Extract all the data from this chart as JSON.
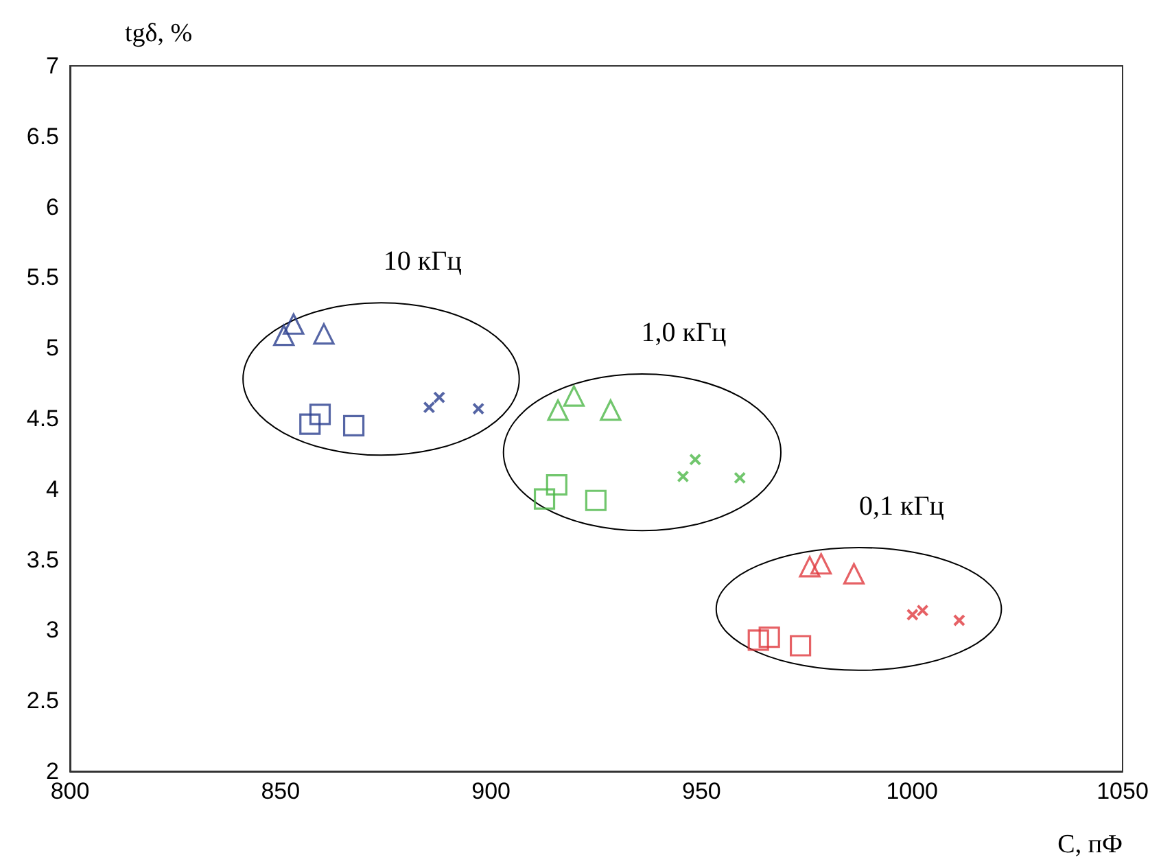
{
  "chart_data": {
    "type": "scatter",
    "xlabel": "C, пФ",
    "ylabel": "tgδ, %",
    "xlim": [
      800,
      1050
    ],
    "xticks": [
      800,
      850,
      900,
      950,
      1000,
      1050
    ],
    "ylim": [
      2,
      7
    ],
    "yticks": [
      2,
      2.5,
      3,
      3.5,
      4,
      4.5,
      5,
      5.5,
      6,
      6.5,
      7
    ],
    "grid": false,
    "series": [
      {
        "color": "#2b3f8f",
        "marker": "triangle",
        "x": [
          850.8,
          853.1,
          860.3
        ],
        "values": [
          5.09,
          5.17,
          5.1
        ]
      },
      {
        "color": "#2b3f8f",
        "marker": "square",
        "x": [
          857.0,
          859.4,
          867.4
        ],
        "values": [
          4.46,
          4.53,
          4.45
        ]
      },
      {
        "color": "#2b3f8f",
        "marker": "cross",
        "x": [
          885.3,
          887.7,
          897.0
        ],
        "values": [
          4.58,
          4.65,
          4.57
        ]
      },
      {
        "color": "#4db848",
        "marker": "triangle",
        "x": [
          915.9,
          919.7,
          928.4
        ],
        "values": [
          4.56,
          4.66,
          4.56
        ]
      },
      {
        "color": "#4db848",
        "marker": "square",
        "x": [
          912.7,
          915.6,
          924.9
        ],
        "values": [
          3.93,
          4.03,
          3.92
        ]
      },
      {
        "color": "#4db848",
        "marker": "cross",
        "x": [
          945.6,
          948.5,
          959.1
        ],
        "values": [
          4.09,
          4.21,
          4.08
        ]
      },
      {
        "color": "#e03a3e",
        "marker": "triangle",
        "x": [
          975.7,
          978.4,
          986.2
        ],
        "values": [
          3.45,
          3.47,
          3.4
        ]
      },
      {
        "color": "#e03a3e",
        "marker": "square",
        "x": [
          963.5,
          966.1,
          973.5
        ],
        "values": [
          2.93,
          2.95,
          2.89
        ]
      },
      {
        "color": "#e03a3e",
        "marker": "cross",
        "x": [
          1000.1,
          1002.5,
          1011.2
        ],
        "values": [
          3.11,
          3.14,
          3.07
        ]
      }
    ],
    "annotations": [
      "10 кГц",
      "1,0 кГц",
      "0,1 кГц"
    ]
  }
}
